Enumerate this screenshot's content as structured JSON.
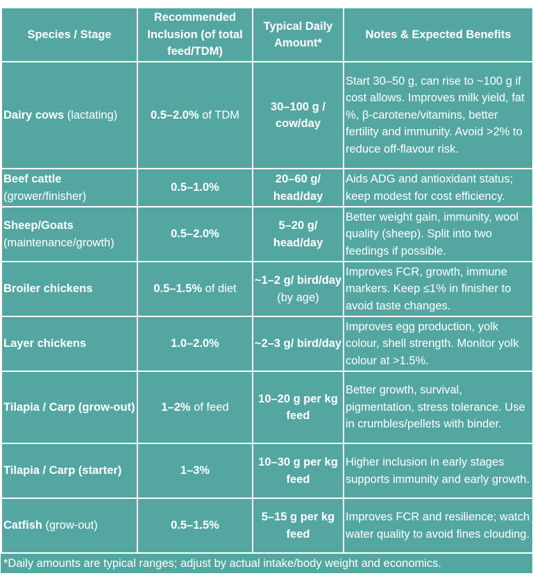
{
  "header": {
    "col1": "Species / Stage",
    "col2": "Recommended Inclusion (of total feed/TDM)",
    "col3": "Typical Daily Amount*",
    "col4": "Notes & Expected Benefits"
  },
  "rows": [
    {
      "species_bold": "Dairy cows",
      "species_normal": " (lactating)",
      "incl_bold": "0.5–2.0%",
      "incl_normal": " of TDM",
      "amount_bold": "30–100 g / cow/day",
      "amount_normal": "",
      "notes": "Start 30–50 g, can rise to ~100 g if cost allows. Improves milk yield, fat %, β-carotene/vitamins, better fertility and immunity. Avoid >2% to reduce off-flavour risk."
    },
    {
      "species_bold": "Beef cattle",
      "species_normal": " (grower/finisher)",
      "incl_bold": "0.5–1.0%",
      "incl_normal": "",
      "amount_bold": "20–60 g/ head/day",
      "amount_normal": "",
      "notes": "Aids ADG and antioxidant status; keep modest for cost efficiency."
    },
    {
      "species_bold": "Sheep/Goats",
      "species_normal": " (maintenance/growth)",
      "incl_bold": "0.5–2.0%",
      "incl_normal": "",
      "amount_bold": "5–20 g/ head/day",
      "amount_normal": "",
      "notes": "Better weight gain, immunity, wool quality (sheep). Split into two feedings if possible."
    },
    {
      "species_bold": "Broiler chickens",
      "species_normal": "",
      "incl_bold": "0.5–1.5%",
      "incl_normal": " of diet",
      "amount_bold": "~1–2 g/ bird/day",
      "amount_normal": " (by age)",
      "notes": "Improves FCR, growth, immune markers. Keep ≤1% in finisher to avoid taste changes."
    },
    {
      "species_bold": "Layer chickens",
      "species_normal": "",
      "incl_bold": "1.0–2.0%",
      "incl_normal": "",
      "amount_bold": "~2–3 g/ bird/day",
      "amount_normal": "",
      "notes": "Improves egg production, yolk colour, shell strength. Monitor yolk colour at >1.5%."
    },
    {
      "species_bold": "Tilapia / Carp (grow-out)",
      "species_normal": "",
      "incl_bold": "1–2%",
      "incl_normal": " of feed",
      "amount_bold": "10–20 g per kg feed",
      "amount_normal": "",
      "notes": "Better growth, survival, pigmentation, stress tolerance. Use in crumbles/pellets with binder."
    },
    {
      "species_bold": "Tilapia / Carp (starter)",
      "species_normal": "",
      "incl_bold": "1–3%",
      "incl_normal": "",
      "amount_bold": "10–30 g per kg feed",
      "amount_normal": "",
      "notes": "Higher inclusion in early stages supports immunity and early growth."
    },
    {
      "species_bold": "Catfish",
      "species_normal": " (grow-out)",
      "incl_bold": "0.5–1.5%",
      "incl_normal": "",
      "amount_bold": "5–15 g per kg feed",
      "amount_normal": "",
      "notes": "Improves FCR and resilience; watch water quality to avoid fines clouding."
    }
  ],
  "footnote": "*Daily amounts are typical ranges; adjust by actual intake/body weight and economics.",
  "colors": {
    "cell_bg": "#54a6a1",
    "text": "#ffffff",
    "border": "#ffffff"
  }
}
